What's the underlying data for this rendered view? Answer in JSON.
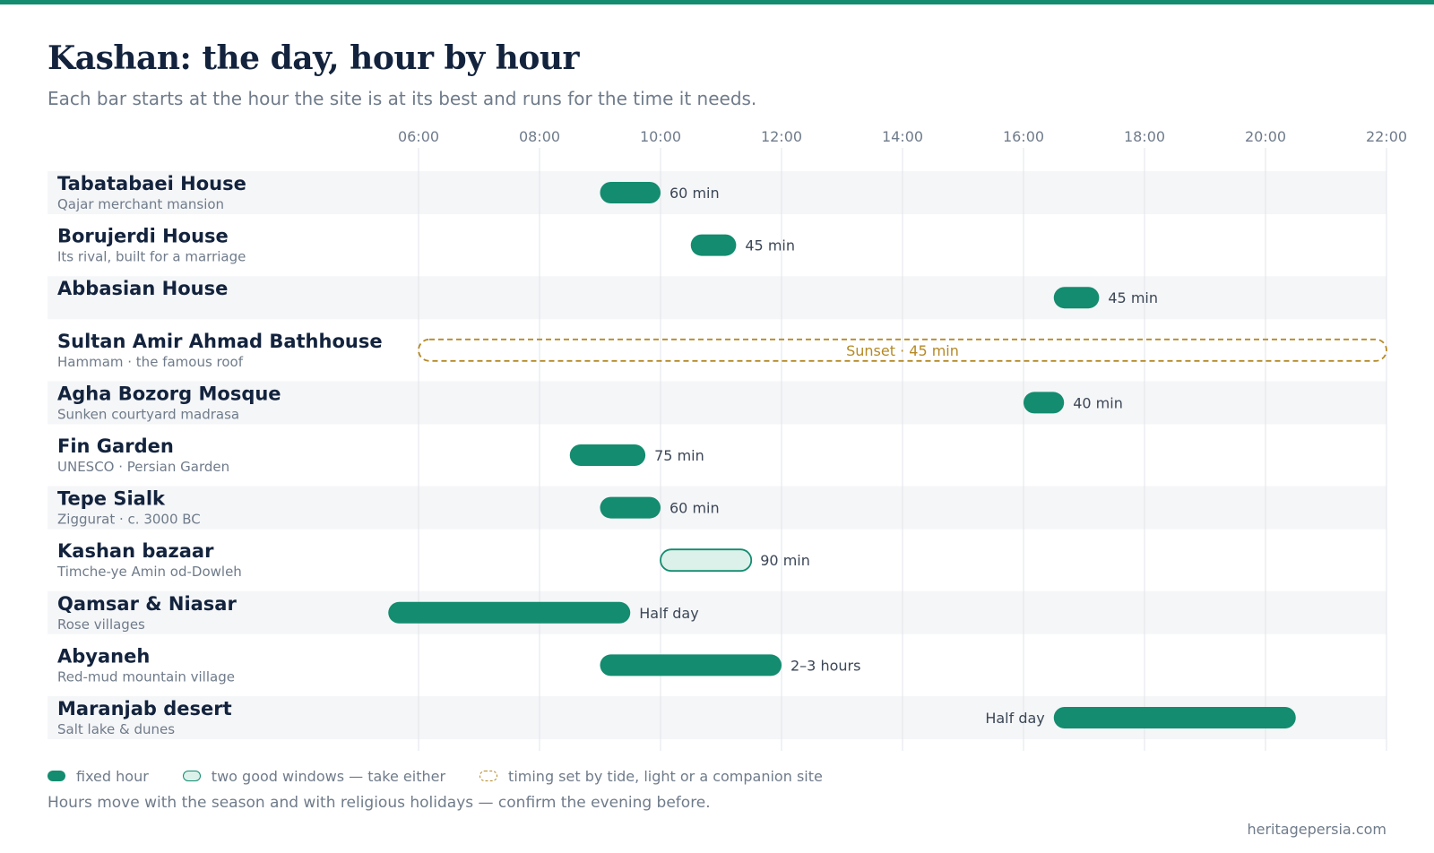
{
  "title": "Kashan: the day, hour by hour",
  "subtitle": "Each bar starts at the hour the site is at its best and runs for the time it needs.",
  "colors": {
    "accent": "#138c6f",
    "two_windows_fill": "#dcf1ea",
    "dependent": "#b58a27",
    "title": "#13233d",
    "muted": "#6f7b8a",
    "band": "#f5f6f8",
    "grid": "#e2e4e8"
  },
  "chart_data": {
    "type": "gantt",
    "x_unit": "hour of day",
    "x_range": [
      6,
      22
    ],
    "x_ticks": [
      "06:00",
      "08:00",
      "10:00",
      "12:00",
      "14:00",
      "16:00",
      "18:00",
      "20:00",
      "22:00"
    ],
    "grid": true,
    "rows": [
      {
        "name": "Tabatabaei House",
        "note": "Qajar merchant mansion",
        "start": 9.0,
        "end": 10.0,
        "label": "60 min",
        "kind": "fixed"
      },
      {
        "name": "Borujerdi House",
        "note": "Its rival, built for a marriage",
        "start": 10.5,
        "end": 11.25,
        "label": "45 min",
        "kind": "fixed"
      },
      {
        "name": "Abbasian House",
        "note": "",
        "start": 16.5,
        "end": 17.25,
        "label": "45 min",
        "kind": "fixed"
      },
      {
        "name": "Sultan Amir Ahmad Bathhouse",
        "note": "Hammam · the famous roof",
        "start": 6.0,
        "end": 22.0,
        "label": "Sunset · 45 min",
        "kind": "dependent"
      },
      {
        "name": "Agha Bozorg Mosque",
        "note": "Sunken courtyard madrasa",
        "start": 16.0,
        "end": 16.67,
        "label": "40 min",
        "kind": "fixed"
      },
      {
        "name": "Fin Garden",
        "note": "UNESCO · Persian Garden",
        "start": 8.5,
        "end": 9.75,
        "label": "75 min",
        "kind": "fixed"
      },
      {
        "name": "Tepe Sialk",
        "note": "Ziggurat · c. 3000 BC",
        "start": 9.0,
        "end": 10.0,
        "label": "60 min",
        "kind": "fixed"
      },
      {
        "name": "Kashan bazaar",
        "note": "Timche-ye Amin od-Dowleh",
        "start": 10.0,
        "end": 11.5,
        "label": "90 min",
        "kind": "two-windows"
      },
      {
        "name": "Qamsar & Niasar",
        "note": "Rose villages",
        "start": 5.5,
        "end": 9.5,
        "label": "Half day",
        "kind": "fixed"
      },
      {
        "name": "Abyaneh",
        "note": "Red-mud mountain village",
        "start": 9.0,
        "end": 12.0,
        "label": "2–3 hours",
        "kind": "fixed"
      },
      {
        "name": "Maranjab desert",
        "note": "Salt lake & dunes",
        "start": 16.5,
        "end": 20.5,
        "label": "Half day",
        "kind": "fixed",
        "label_side": "left"
      }
    ]
  },
  "legend": {
    "fixed": "fixed hour",
    "two_windows": "two good windows — take either",
    "dependent": "timing set by tide, light or a companion site"
  },
  "footnote": "Hours move with the season and with religious holidays — confirm the evening before.",
  "source": "heritagepersia.com"
}
